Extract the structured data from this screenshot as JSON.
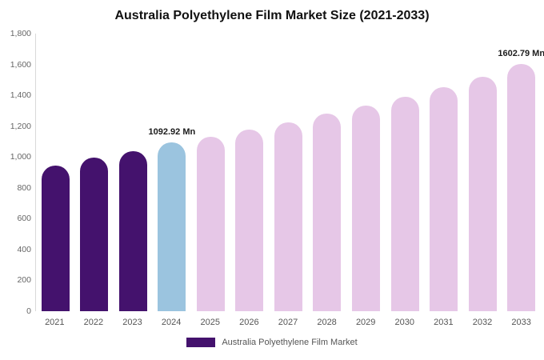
{
  "title": "Australia Polyethylene Film Market Size (2021-2033)",
  "legend": {
    "label": "Australia Polyethylene Film Market",
    "swatch_color": "#44126d"
  },
  "colors": {
    "dark_purple": "#44126d",
    "highlight_blue": "#9bc4df",
    "light_pink": "#e6c7e7",
    "axis_line": "#d9d9d9",
    "tick_text": "#666666"
  },
  "chart_data": {
    "type": "bar",
    "title": "Australia Polyethylene Film Market Size (2021-2033)",
    "categories": [
      "2021",
      "2022",
      "2023",
      "2024",
      "2025",
      "2026",
      "2027",
      "2028",
      "2029",
      "2030",
      "2031",
      "2032",
      "2033"
    ],
    "values": [
      945,
      995,
      1040,
      1092.92,
      1130,
      1180,
      1225,
      1280,
      1335,
      1390,
      1450,
      1520,
      1602.79
    ],
    "series_name": "Australia Polyethylene Film Market",
    "point_colors": [
      "#44126d",
      "#44126d",
      "#44126d",
      "#9bc4df",
      "#e6c7e7",
      "#e6c7e7",
      "#e6c7e7",
      "#e6c7e7",
      "#e6c7e7",
      "#e6c7e7",
      "#e6c7e7",
      "#e6c7e7",
      "#e6c7e7"
    ],
    "data_labels": [
      {
        "index": 3,
        "text": "1092.92 Mn"
      },
      {
        "index": 12,
        "text": "1602.79 Mn"
      }
    ],
    "xlabel": "",
    "ylabel": "",
    "ylim": [
      0,
      1800
    ],
    "yticks": [
      "0",
      "200",
      "400",
      "600",
      "800",
      "1,000",
      "1,200",
      "1,400",
      "1,600",
      "1,800"
    ],
    "grid": false,
    "legend_position": "bottom"
  }
}
